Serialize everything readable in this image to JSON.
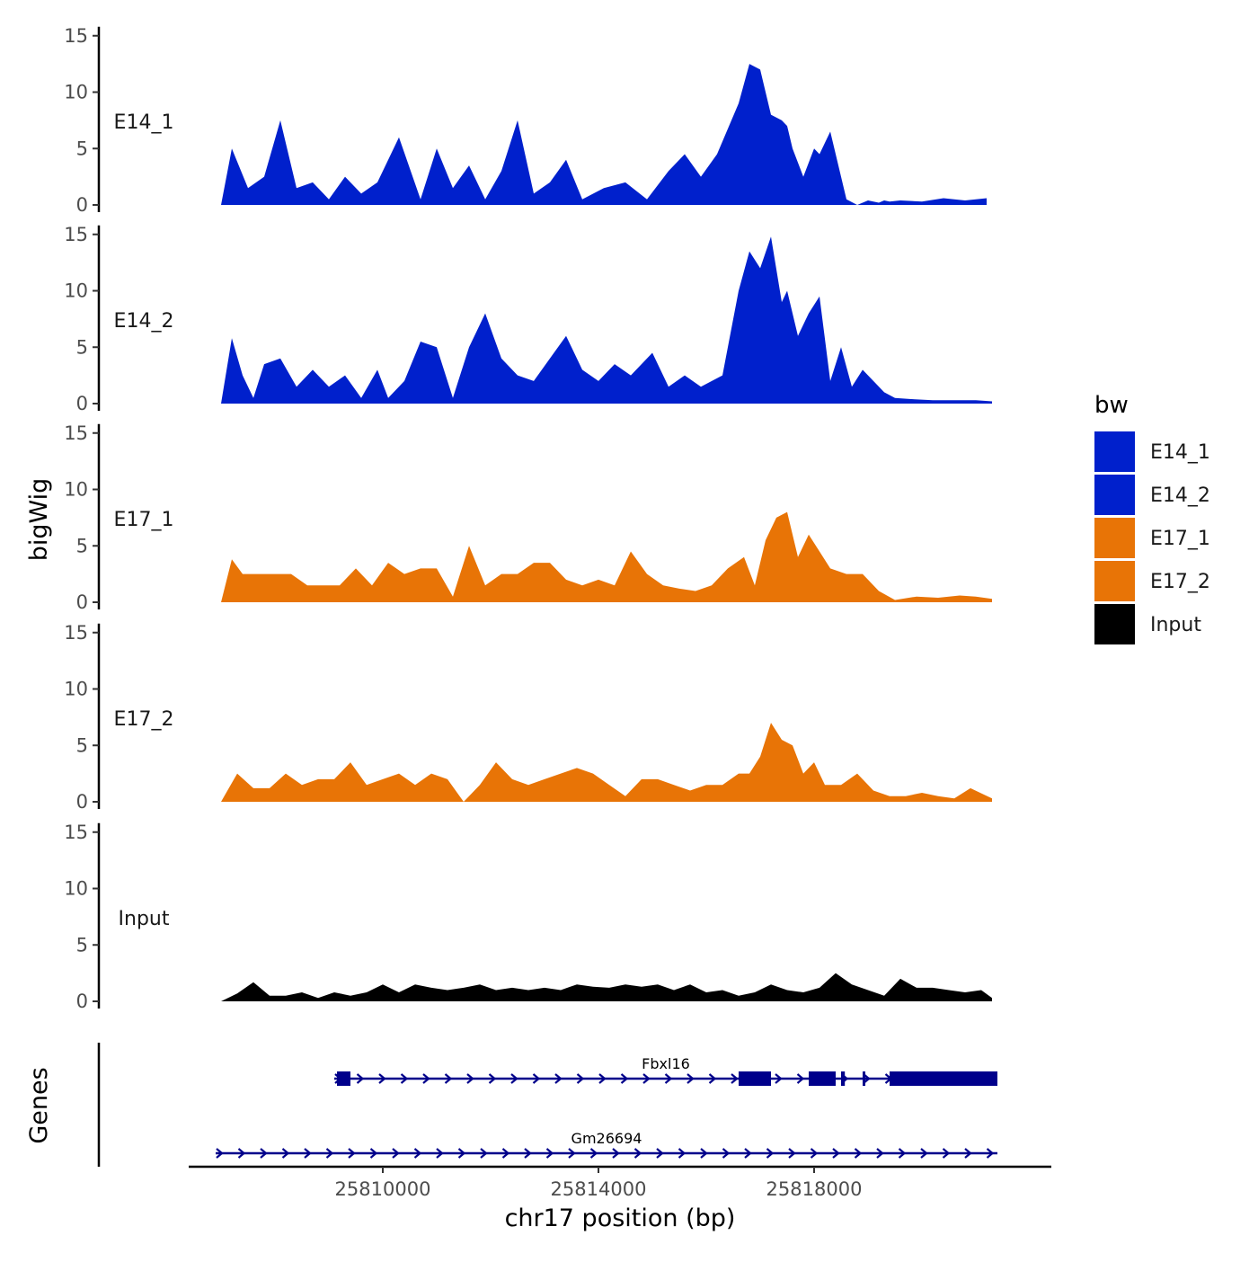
{
  "chart_data": {
    "type": "area",
    "title": "",
    "xlabel": "chr17 position (bp)",
    "ylabel": "bigWig",
    "genes_label": "Genes",
    "xlim": [
      25806400,
      25822400
    ],
    "ylim": [
      0,
      15
    ],
    "y_ticks": [
      0,
      5,
      10,
      15
    ],
    "x_ticks": [
      25810000,
      25814000,
      25818000
    ],
    "x_tick_labels": [
      "25810000",
      "25814000",
      "25818000"
    ],
    "legend": {
      "title": "bw",
      "position": "right",
      "entries": [
        {
          "label": "E14_1",
          "color": "#0020CC"
        },
        {
          "label": "E14_2",
          "color": "#0020CC"
        },
        {
          "label": "E17_1",
          "color": "#E87406"
        },
        {
          "label": "E17_2",
          "color": "#E87406"
        },
        {
          "label": "Input",
          "color": "#000000"
        }
      ]
    },
    "series": [
      {
        "name": "E14_1",
        "color": "#0020CC",
        "x": [
          25807000,
          25807200,
          25807500,
          25807800,
          25808100,
          25808400,
          25808700,
          25809000,
          25809300,
          25809600,
          25809900,
          25810300,
          25810700,
          25811000,
          25811300,
          25811600,
          25811900,
          25812200,
          25812500,
          25812800,
          25813100,
          25813400,
          25813700,
          25814100,
          25814500,
          25814900,
          25815300,
          25815600,
          25815900,
          25816200,
          25816600,
          25816800,
          25817000,
          25817200,
          25817400,
          25817500,
          25817600,
          25817800,
          25818000,
          25818100,
          25818300,
          25818600,
          25818800,
          25819000,
          25819200,
          25819300,
          25819400,
          25819600,
          25820000,
          25820400,
          25820800,
          25821200
        ],
        "values": [
          0,
          5,
          1.5,
          2.5,
          7.5,
          1.5,
          2,
          0.5,
          2.5,
          1,
          2,
          6,
          0.5,
          5,
          1.5,
          3.5,
          0.5,
          3,
          7.5,
          1,
          2,
          4,
          0.5,
          1.5,
          2,
          0.5,
          3,
          4.5,
          2.5,
          4.5,
          9,
          12.5,
          12,
          8,
          7.5,
          7,
          5,
          2.5,
          5,
          4.5,
          6.5,
          0.5,
          0,
          0.4,
          0.2,
          0.4,
          0.3,
          0.4,
          0.3,
          0.6,
          0.4,
          0.6
        ]
      },
      {
        "name": "E14_2",
        "color": "#0020CC",
        "x": [
          25807000,
          25807200,
          25807400,
          25807600,
          25807800,
          25808100,
          25808400,
          25808700,
          25809000,
          25809300,
          25809600,
          25809900,
          25810100,
          25810400,
          25810700,
          25811000,
          25811300,
          25811600,
          25811900,
          25812200,
          25812500,
          25812800,
          25813100,
          25813400,
          25813700,
          25814000,
          25814300,
          25814600,
          25815000,
          25815300,
          25815600,
          25815900,
          25816300,
          25816600,
          25816800,
          25817000,
          25817200,
          25817400,
          25817500,
          25817700,
          25817900,
          25818100,
          25818300,
          25818500,
          25818700,
          25818900,
          25819100,
          25819300,
          25819500,
          25819800,
          25820200,
          25820600,
          25821000,
          25821300
        ],
        "values": [
          0,
          5.8,
          2.5,
          0.5,
          3.5,
          4,
          1.5,
          3,
          1.5,
          2.5,
          0.5,
          3,
          0.5,
          2,
          5.5,
          5,
          0.5,
          5,
          8,
          4,
          2.5,
          2,
          4,
          6,
          3,
          2,
          3.5,
          2.5,
          4.5,
          1.5,
          2.5,
          1.5,
          2.5,
          10,
          13.5,
          12,
          14.8,
          9,
          10,
          6,
          8,
          9.5,
          2,
          5,
          1.5,
          3,
          2,
          1,
          0.5,
          0.4,
          0.3,
          0.3,
          0.3,
          0.2
        ]
      },
      {
        "name": "E17_1",
        "color": "#E87406",
        "x": [
          25807000,
          25807200,
          25807400,
          25807700,
          25808000,
          25808300,
          25808600,
          25808900,
          25809200,
          25809500,
          25809800,
          25810100,
          25810400,
          25810700,
          25811000,
          25811300,
          25811600,
          25811900,
          25812200,
          25812500,
          25812800,
          25813100,
          25813400,
          25813700,
          25814000,
          25814300,
          25814600,
          25814900,
          25815200,
          25815500,
          25815800,
          25816100,
          25816400,
          25816700,
          25816900,
          25817100,
          25817300,
          25817500,
          25817700,
          25817900,
          25818100,
          25818300,
          25818600,
          25818900,
          25819200,
          25819500,
          25819900,
          25820300,
          25820700,
          25821000,
          25821300
        ],
        "values": [
          0,
          3.8,
          2.5,
          2.5,
          2.5,
          2.5,
          1.5,
          1.5,
          1.5,
          3,
          1.5,
          3.5,
          2.5,
          3,
          3,
          0.5,
          5,
          1.5,
          2.5,
          2.5,
          3.5,
          3.5,
          2,
          1.5,
          2,
          1.5,
          4.5,
          2.5,
          1.5,
          1.2,
          1,
          1.5,
          3,
          4,
          1.5,
          5.5,
          7.5,
          8,
          4,
          6,
          4.5,
          3,
          2.5,
          2.5,
          1,
          0.2,
          0.5,
          0.4,
          0.6,
          0.5,
          0.3
        ]
      },
      {
        "name": "E17_2",
        "color": "#E87406",
        "x": [
          25807000,
          25807300,
          25807600,
          25807900,
          25808200,
          25808500,
          25808800,
          25809100,
          25809400,
          25809700,
          25810000,
          25810300,
          25810600,
          25810900,
          25811200,
          25811500,
          25811800,
          25812100,
          25812400,
          25812700,
          25813000,
          25813300,
          25813600,
          25813900,
          25814200,
          25814500,
          25814800,
          25815100,
          25815400,
          25815700,
          25816000,
          25816300,
          25816600,
          25816800,
          25817000,
          25817200,
          25817400,
          25817600,
          25817800,
          25818000,
          25818200,
          25818500,
          25818800,
          25819100,
          25819400,
          25819700,
          25820000,
          25820300,
          25820600,
          25820900,
          25821300
        ],
        "values": [
          0,
          2.5,
          1.2,
          1.2,
          2.5,
          1.5,
          2,
          2,
          3.5,
          1.5,
          2,
          2.5,
          1.5,
          2.5,
          2,
          0,
          1.5,
          3.5,
          2,
          1.5,
          2,
          2.5,
          3,
          2.5,
          1.5,
          0.5,
          2,
          2,
          1.5,
          1,
          1.5,
          1.5,
          2.5,
          2.5,
          4,
          7,
          5.5,
          5,
          2.5,
          3.5,
          1.5,
          1.5,
          2.5,
          1,
          0.5,
          0.5,
          0.8,
          0.5,
          0.3,
          1.2,
          0.3
        ]
      },
      {
        "name": "Input",
        "color": "#000000",
        "x": [
          25807000,
          25807300,
          25807600,
          25807900,
          25808200,
          25808500,
          25808800,
          25809100,
          25809400,
          25809700,
          25810000,
          25810300,
          25810600,
          25810900,
          25811200,
          25811500,
          25811800,
          25812100,
          25812400,
          25812700,
          25813000,
          25813300,
          25813600,
          25813900,
          25814200,
          25814500,
          25814800,
          25815100,
          25815400,
          25815700,
          25816000,
          25816300,
          25816600,
          25816900,
          25817200,
          25817500,
          25817800,
          25818100,
          25818400,
          25818700,
          25819000,
          25819300,
          25819600,
          25819900,
          25820200,
          25820500,
          25820800,
          25821100,
          25821300
        ],
        "values": [
          0,
          0.7,
          1.7,
          0.5,
          0.5,
          0.8,
          0.3,
          0.8,
          0.5,
          0.8,
          1.5,
          0.8,
          1.5,
          1.2,
          1,
          1.2,
          1.5,
          1,
          1.2,
          1,
          1.2,
          1,
          1.5,
          1.3,
          1.2,
          1.5,
          1.3,
          1.5,
          1,
          1.5,
          0.8,
          1,
          0.5,
          0.8,
          1.5,
          1,
          0.8,
          1.2,
          2.5,
          1.5,
          1,
          0.5,
          2,
          1.2,
          1.2,
          1,
          0.8,
          1,
          0.3
        ]
      }
    ],
    "genes": [
      {
        "name": "Fbxl16",
        "start": 25809100,
        "end": 25821400,
        "strand": "+",
        "exons": [
          [
            25809150,
            25809400
          ],
          [
            25816600,
            25817200
          ],
          [
            25817900,
            25818400
          ],
          [
            25818500,
            25818570
          ],
          [
            25818900,
            25818950
          ],
          [
            25819400,
            25821400
          ]
        ]
      },
      {
        "name": "Gm26694",
        "start": 25806900,
        "end": 25821400,
        "strand": "+",
        "exons": []
      }
    ]
  }
}
